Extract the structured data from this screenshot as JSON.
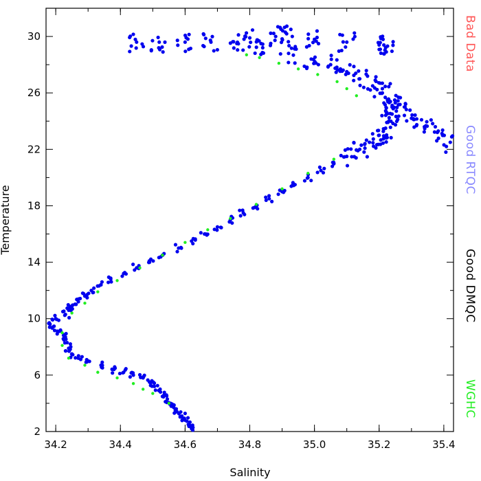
{
  "chart_data": {
    "type": "scatter",
    "xlabel": "Salinity",
    "ylabel": "Temperature",
    "xlim": [
      34.17,
      35.43
    ],
    "ylim": [
      2,
      32
    ],
    "xticks": [
      "34.2",
      "34.4",
      "34.6",
      "34.8",
      "35.0",
      "35.2",
      "35.4"
    ],
    "yticks": [
      "2",
      "6",
      "10",
      "14",
      "18",
      "22",
      "26",
      "30"
    ],
    "grid": false,
    "legend_position": "right",
    "legend": [
      {
        "label": "Bad  Data",
        "color": "#ff5555"
      },
      {
        "label": "Good  RTQC",
        "color": "#8888ff"
      },
      {
        "label": "Good  DMQC",
        "color": "#000000"
      },
      {
        "label": "WGHC",
        "color": "#22ee22"
      }
    ],
    "series": [
      {
        "color": "#0000ee",
        "points": [
          [
            34.62,
            2.2
          ],
          [
            34.61,
            2.5
          ],
          [
            34.6,
            2.8
          ],
          [
            34.59,
            3.1
          ],
          [
            34.575,
            3.4
          ],
          [
            34.565,
            3.7
          ],
          [
            34.555,
            4.0
          ],
          [
            34.545,
            4.3
          ],
          [
            34.535,
            4.6
          ],
          [
            34.52,
            4.9
          ],
          [
            34.505,
            5.2
          ],
          [
            34.49,
            5.5
          ],
          [
            34.47,
            5.8
          ],
          [
            34.44,
            6.0
          ],
          [
            34.41,
            6.2
          ],
          [
            34.38,
            6.4
          ],
          [
            34.34,
            6.7
          ],
          [
            34.3,
            7.0
          ],
          [
            34.27,
            7.2
          ],
          [
            34.25,
            7.5
          ],
          [
            34.24,
            7.9
          ],
          [
            34.235,
            8.3
          ],
          [
            34.23,
            8.7
          ],
          [
            34.21,
            9.1
          ],
          [
            34.19,
            9.4
          ],
          [
            34.18,
            9.7
          ],
          [
            34.2,
            10.0
          ],
          [
            34.23,
            10.3
          ],
          [
            34.24,
            10.6
          ],
          [
            34.25,
            10.9
          ],
          [
            34.27,
            11.2
          ],
          [
            34.29,
            11.6
          ],
          [
            34.31,
            12.0
          ],
          [
            34.34,
            12.4
          ],
          [
            34.37,
            12.8
          ],
          [
            34.41,
            13.2
          ],
          [
            34.45,
            13.6
          ],
          [
            34.49,
            14.0
          ],
          [
            34.53,
            14.5
          ],
          [
            34.58,
            15.0
          ],
          [
            34.62,
            15.5
          ],
          [
            34.66,
            16.0
          ],
          [
            34.7,
            16.5
          ],
          [
            34.74,
            17.0
          ],
          [
            34.78,
            17.5
          ],
          [
            34.82,
            18.0
          ],
          [
            34.86,
            18.5
          ],
          [
            34.9,
            19.0
          ],
          [
            34.94,
            19.5
          ],
          [
            34.98,
            20.0
          ],
          [
            35.02,
            20.5
          ],
          [
            35.06,
            21.0
          ],
          [
            35.1,
            21.5
          ],
          [
            35.14,
            22.0
          ],
          [
            35.17,
            22.5
          ],
          [
            35.2,
            23.0
          ],
          [
            35.22,
            23.5
          ],
          [
            35.23,
            24.0
          ],
          [
            35.24,
            24.5
          ],
          [
            35.24,
            25.0
          ],
          [
            35.23,
            25.5
          ],
          [
            35.21,
            26.0
          ],
          [
            35.18,
            26.5
          ],
          [
            35.14,
            27.0
          ],
          [
            35.1,
            27.5
          ],
          [
            35.05,
            28.0
          ],
          [
            34.99,
            28.4
          ],
          [
            34.92,
            28.8
          ],
          [
            34.84,
            29.2
          ],
          [
            34.76,
            29.5
          ],
          [
            34.68,
            29.6
          ],
          [
            34.6,
            29.6
          ],
          [
            34.52,
            29.6
          ],
          [
            34.45,
            29.6
          ],
          [
            34.8,
            29.9
          ],
          [
            34.88,
            30.0
          ],
          [
            34.91,
            30.3
          ],
          [
            35.0,
            29.8
          ],
          [
            35.1,
            29.6
          ],
          [
            35.2,
            29.4
          ],
          [
            35.22,
            29.2
          ],
          [
            35.28,
            25.0
          ],
          [
            35.3,
            24.2
          ],
          [
            35.34,
            23.6
          ],
          [
            35.38,
            23.2
          ],
          [
            35.42,
            22.5
          ]
        ]
      },
      {
        "color": "#22ee22",
        "points": [
          [
            34.55,
            4.0
          ],
          [
            34.5,
            4.7
          ],
          [
            34.47,
            5.0
          ],
          [
            34.44,
            5.4
          ],
          [
            34.39,
            5.8
          ],
          [
            34.33,
            6.2
          ],
          [
            34.29,
            6.7
          ],
          [
            34.24,
            7.2
          ],
          [
            34.22,
            8.1
          ],
          [
            34.22,
            9.0
          ],
          [
            34.25,
            10.4
          ],
          [
            34.29,
            11.1
          ],
          [
            34.33,
            11.9
          ],
          [
            34.39,
            12.7
          ],
          [
            34.46,
            13.6
          ],
          [
            34.53,
            14.5
          ],
          [
            34.6,
            15.4
          ],
          [
            34.67,
            16.3
          ],
          [
            34.74,
            17.1
          ],
          [
            34.82,
            18.1
          ],
          [
            34.9,
            19.2
          ],
          [
            34.98,
            20.3
          ],
          [
            35.06,
            21.3
          ],
          [
            35.13,
            25.8
          ],
          [
            35.1,
            26.3
          ],
          [
            35.07,
            26.8
          ],
          [
            35.01,
            27.3
          ],
          [
            34.95,
            27.7
          ],
          [
            34.89,
            28.1
          ],
          [
            34.83,
            28.5
          ],
          [
            34.79,
            28.7
          ]
        ]
      }
    ]
  }
}
